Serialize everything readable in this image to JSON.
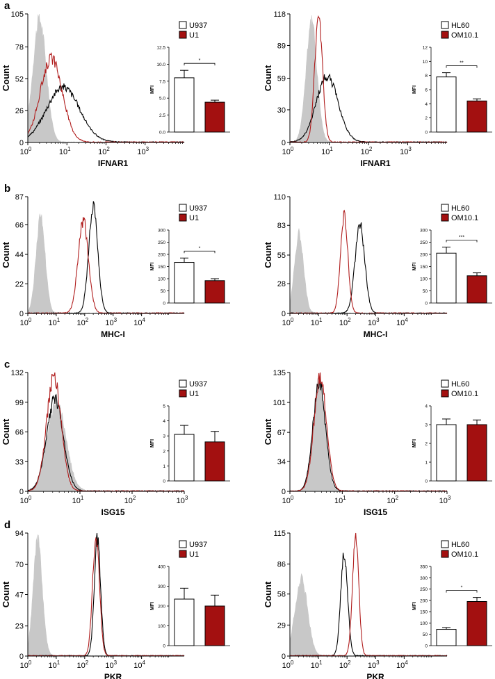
{
  "figure": {
    "panel_labels": [
      "a",
      "b",
      "c",
      "d"
    ],
    "colors": {
      "control": "#000000",
      "infected": "#b01c1c",
      "isotype": "#c8c8c8",
      "bar_fill_infected": "#a31010",
      "bar_fill_control": "#ffffff"
    }
  },
  "chart_data": [
    {
      "id": "a-left",
      "row": 0,
      "col": 0,
      "panel_label": "a",
      "type": "area",
      "xlabel": "IFNAR1",
      "ylabel": "Count",
      "xticks": [
        "10^0",
        "10^1",
        "10^2",
        "10^3"
      ],
      "yticks": [
        "0",
        "26",
        "52",
        "78",
        "105"
      ],
      "ylim": [
        0,
        105
      ],
      "x_log_range": [
        0,
        4
      ],
      "series": [
        {
          "name": "isotype",
          "peak_log": 0.3,
          "peak": 100,
          "width": 0.17
        },
        {
          "name": "U937",
          "peak_log": 0.9,
          "peak": 45,
          "width": 0.42
        },
        {
          "name": "U1",
          "peak_log": 0.6,
          "peak": 68,
          "width": 0.28
        }
      ],
      "inset": {
        "type": "bar",
        "ylabel": "MFI",
        "legend": [
          "U937",
          "U1"
        ],
        "categories": [
          "U937",
          "U1"
        ],
        "values": [
          8.0,
          4.4
        ],
        "errors": [
          1.1,
          0.3
        ],
        "yticks": [
          "0.0",
          "2.5",
          "5.0",
          "7.5",
          "10.0",
          "12.5"
        ],
        "ylim": [
          0,
          12.5
        ],
        "significance": "*"
      }
    },
    {
      "id": "a-right",
      "row": 0,
      "col": 1,
      "type": "area",
      "xlabel": "IFNAR1",
      "ylabel": "Count",
      "xticks": [
        "10^0",
        "10^1",
        "10^2",
        "10^3"
      ],
      "yticks": [
        "0",
        "30",
        "59",
        "89",
        "118"
      ],
      "ylim": [
        0,
        118
      ],
      "x_log_range": [
        0,
        4
      ],
      "series": [
        {
          "name": "isotype",
          "peak_log": 0.55,
          "peak": 110,
          "width": 0.14
        },
        {
          "name": "HL60",
          "peak_log": 0.95,
          "peak": 60,
          "width": 0.28
        },
        {
          "name": "OM10.1",
          "peak_log": 0.73,
          "peak": 115,
          "width": 0.1
        }
      ],
      "inset": {
        "type": "bar",
        "ylabel": "MFI",
        "legend": [
          "HL60",
          "OM10.1"
        ],
        "categories": [
          "HL60",
          "OM10.1"
        ],
        "values": [
          7.8,
          4.4
        ],
        "errors": [
          0.6,
          0.3
        ],
        "yticks": [
          "0",
          "2",
          "4",
          "6",
          "8",
          "10",
          "12"
        ],
        "ylim": [
          0,
          12
        ],
        "significance": "**"
      }
    },
    {
      "id": "b-left",
      "row": 1,
      "col": 0,
      "panel_label": "b",
      "type": "area",
      "xlabel": "MHC-I",
      "ylabel": "Count",
      "xticks": [
        "10^0",
        "10^1",
        "10^2",
        "10^3",
        "10^4"
      ],
      "yticks": [
        "0",
        "22",
        "44",
        "66",
        "87"
      ],
      "ylim": [
        0,
        87
      ],
      "x_log_range": [
        0,
        5.5
      ],
      "series": [
        {
          "name": "isotype",
          "peak_log": 0.45,
          "peak": 72,
          "width": 0.16
        },
        {
          "name": "U937",
          "peak_log": 2.3,
          "peak": 79,
          "width": 0.16
        },
        {
          "name": "U1",
          "peak_log": 1.95,
          "peak": 69,
          "width": 0.18
        }
      ],
      "inset": {
        "type": "bar",
        "ylabel": "MFI",
        "legend": [
          "U937",
          "U1"
        ],
        "categories": [
          "U937",
          "U1"
        ],
        "values": [
          167,
          92
        ],
        "errors": [
          18,
          8
        ],
        "yticks": [
          "0",
          "50",
          "100",
          "150",
          "200",
          "250",
          "300"
        ],
        "ylim": [
          0,
          300
        ],
        "significance": "*"
      }
    },
    {
      "id": "b-right",
      "row": 1,
      "col": 1,
      "type": "area",
      "xlabel": "MHC-I",
      "ylabel": "Count",
      "xticks": [
        "10^0",
        "10^1",
        "10^2",
        "10^3",
        "10^4"
      ],
      "yticks": [
        "0",
        "28",
        "55",
        "83",
        "110"
      ],
      "ylim": [
        0,
        110
      ],
      "x_log_range": [
        0,
        5.5
      ],
      "series": [
        {
          "name": "isotype",
          "peak_log": 0.32,
          "peak": 75,
          "width": 0.16
        },
        {
          "name": "HL60",
          "peak_log": 2.45,
          "peak": 83,
          "width": 0.17
        },
        {
          "name": "OM10.1",
          "peak_log": 1.9,
          "peak": 92,
          "width": 0.13
        }
      ],
      "inset": {
        "type": "bar",
        "ylabel": "MFI",
        "legend": [
          "HL60",
          "OM10.1"
        ],
        "categories": [
          "HL60",
          "OM10.1"
        ],
        "values": [
          205,
          112
        ],
        "errors": [
          25,
          12
        ],
        "yticks": [
          "0",
          "50",
          "100",
          "150",
          "200",
          "250",
          "300"
        ],
        "ylim": [
          0,
          300
        ],
        "significance": "***"
      }
    },
    {
      "id": "c-left",
      "row": 2,
      "col": 0,
      "panel_label": "c",
      "type": "area",
      "xlabel": "ISG15",
      "ylabel": "Count",
      "xticks": [
        "10^0",
        "10^1",
        "10^2",
        "10^3"
      ],
      "yticks": [
        "0",
        "33",
        "66",
        "99",
        "132"
      ],
      "ylim": [
        0,
        132
      ],
      "x_log_range": [
        0,
        3
      ],
      "series": [
        {
          "name": "isotype",
          "peak_log": 0.55,
          "peak": 98,
          "width": 0.18
        },
        {
          "name": "U937",
          "peak_log": 0.52,
          "peak": 102,
          "width": 0.16
        },
        {
          "name": "U1",
          "peak_log": 0.5,
          "peak": 126,
          "width": 0.14
        }
      ],
      "inset": {
        "type": "bar",
        "ylabel": "MFI",
        "legend": [
          "U937",
          "U1"
        ],
        "categories": [
          "U937",
          "U1"
        ],
        "values": [
          3.1,
          2.6
        ],
        "errors": [
          0.6,
          0.7
        ],
        "yticks": [
          "0",
          "1",
          "2",
          "3",
          "4",
          "5"
        ],
        "ylim": [
          0,
          5
        ],
        "significance": ""
      }
    },
    {
      "id": "c-right",
      "row": 2,
      "col": 1,
      "type": "area",
      "xlabel": "ISG15",
      "ylabel": "Count",
      "xticks": [
        "10^0",
        "10^1",
        "10^2",
        "10^3"
      ],
      "yticks": [
        "0",
        "34",
        "67",
        "101",
        "135"
      ],
      "ylim": [
        0,
        135
      ],
      "x_log_range": [
        0,
        3
      ],
      "series": [
        {
          "name": "isotype",
          "peak_log": 0.56,
          "peak": 125,
          "width": 0.11
        },
        {
          "name": "HL60",
          "peak_log": 0.56,
          "peak": 122,
          "width": 0.12
        },
        {
          "name": "OM10.1",
          "peak_log": 0.58,
          "peak": 130,
          "width": 0.12
        }
      ],
      "inset": {
        "type": "bar",
        "ylabel": "MFI",
        "legend": [
          "HL60",
          "OM10.1"
        ],
        "categories": [
          "HL60",
          "OM10.1"
        ],
        "values": [
          3.0,
          3.0
        ],
        "errors": [
          0.3,
          0.25
        ],
        "yticks": [
          "0",
          "1",
          "2",
          "3",
          "4"
        ],
        "ylim": [
          0,
          4
        ],
        "significance": ""
      }
    },
    {
      "id": "d-left",
      "row": 3,
      "col": 0,
      "panel_label": "d",
      "type": "area",
      "xlabel": "PKR",
      "ylabel": "Count",
      "xticks": [
        "10^0",
        "10^1",
        "10^2",
        "10^3",
        "10^4"
      ],
      "yticks": [
        "0",
        "23",
        "47",
        "70",
        "94"
      ],
      "ylim": [
        0,
        94
      ],
      "x_log_range": [
        0,
        5.5
      ],
      "series": [
        {
          "name": "isotype",
          "peak_log": 0.35,
          "peak": 88,
          "width": 0.16
        },
        {
          "name": "U937",
          "peak_log": 2.45,
          "peak": 90,
          "width": 0.11
        },
        {
          "name": "U1",
          "peak_log": 2.4,
          "peak": 92,
          "width": 0.12
        }
      ],
      "inset": {
        "type": "bar",
        "ylabel": "MFI",
        "legend": [
          "U937",
          "U1"
        ],
        "categories": [
          "U937",
          "U1"
        ],
        "values": [
          235,
          200
        ],
        "errors": [
          55,
          55
        ],
        "yticks": [
          "0",
          "100",
          "200",
          "300",
          "400"
        ],
        "ylim": [
          0,
          400
        ],
        "significance": ""
      }
    },
    {
      "id": "d-right",
      "row": 3,
      "col": 1,
      "type": "area",
      "xlabel": "PKR",
      "ylabel": "Count",
      "xticks": [
        "10^0",
        "10^1",
        "10^2",
        "10^3",
        "10^4"
      ],
      "yticks": [
        "0",
        "29",
        "58",
        "86",
        "115"
      ],
      "ylim": [
        0,
        115
      ],
      "x_log_range": [
        0,
        5.5
      ],
      "series": [
        {
          "name": "isotype",
          "peak_log": 0.4,
          "peak": 72,
          "width": 0.22
        },
        {
          "name": "HL60",
          "peak_log": 1.9,
          "peak": 95,
          "width": 0.12
        },
        {
          "name": "OM10.1",
          "peak_log": 2.3,
          "peak": 110,
          "width": 0.11
        }
      ],
      "inset": {
        "type": "bar",
        "ylabel": "MFI",
        "legend": [
          "HL60",
          "OM10.1"
        ],
        "categories": [
          "HL60",
          "OM10.1"
        ],
        "values": [
          72,
          195
        ],
        "errors": [
          8,
          18
        ],
        "yticks": [
          "0",
          "50",
          "100",
          "150",
          "200",
          "250",
          "300",
          "350"
        ],
        "ylim": [
          0,
          350
        ],
        "significance": "*"
      }
    }
  ]
}
